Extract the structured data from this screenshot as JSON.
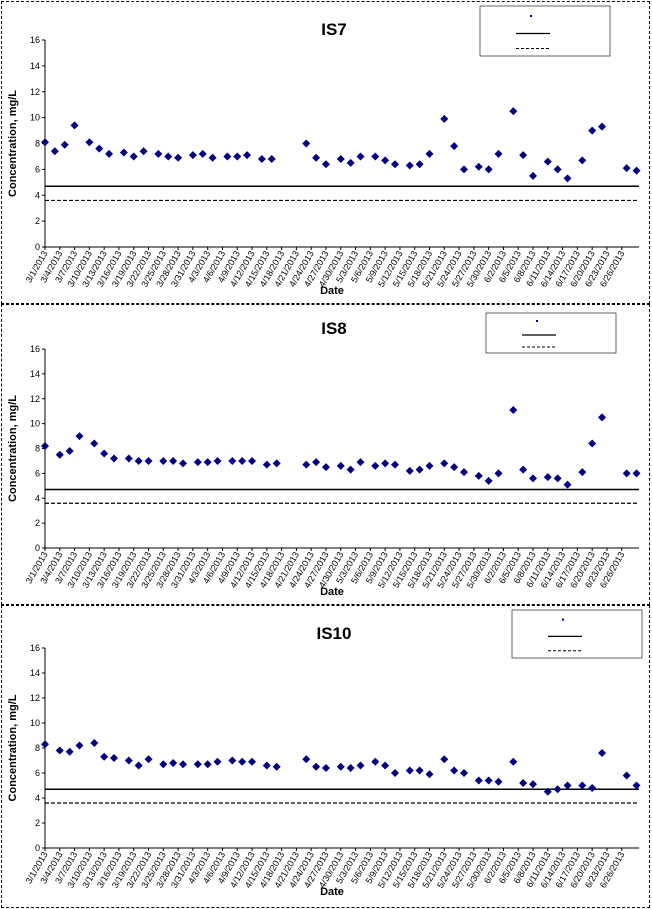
{
  "chart_data": [
    {
      "type": "scatter",
      "title": "IS7",
      "xlabel": "Date",
      "ylabel": "Concentration, mg/L",
      "ylim": [
        0,
        16
      ],
      "yticks": [
        "0",
        "2",
        "4",
        "6",
        "8",
        "10",
        "12",
        "14",
        "16"
      ],
      "x_tick_labels": [
        "3/1/2013",
        "3/4/2013",
        "3/7/2013",
        "3/10/2013",
        "3/13/2013",
        "3/16/2013",
        "3/19/2013",
        "3/22/2013",
        "3/25/2013",
        "3/28/2013",
        "3/31/2013",
        "4/3/2013",
        "4/6/2013",
        "4/9/2013",
        "4/12/2013",
        "4/15/2013",
        "4/18/2013",
        "4/21/2013",
        "4/24/2013",
        "4/27/2013",
        "4/30/2013",
        "5/3/2013",
        "5/6/2013",
        "5/9/2013",
        "5/12/2013",
        "5/15/2013",
        "5/18/2013",
        "5/21/2013",
        "5/24/2013",
        "5/27/2013",
        "5/30/2013",
        "6/2/2013",
        "6/5/2013",
        "6/8/2013",
        "6/11/2013",
        "6/14/2013",
        "6/17/2013",
        "6/20/2013",
        "6/23/2013",
        "6/26/2013"
      ],
      "series": [
        {
          "x": [
            "3/1/2013",
            "3/3/2013",
            "3/5/2013",
            "3/7/2013",
            "3/10/2013",
            "3/12/2013",
            "3/14/2013",
            "3/17/2013",
            "3/19/2013",
            "3/21/2013",
            "3/24/2013",
            "3/26/2013",
            "3/28/2013",
            "3/31/2013",
            "4/2/2013",
            "4/4/2013",
            "4/7/2013",
            "4/9/2013",
            "4/11/2013",
            "4/14/2013",
            "4/16/2013",
            "4/23/2013",
            "4/25/2013",
            "4/27/2013",
            "4/30/2013",
            "5/2/2013",
            "5/4/2013",
            "5/7/2013",
            "5/9/2013",
            "5/11/2013",
            "5/14/2013",
            "5/16/2013",
            "5/18/2013",
            "5/21/2013",
            "5/23/2013",
            "5/25/2013",
            "5/28/2013",
            "5/30/2013",
            "6/1/2013",
            "6/4/2013",
            "6/6/2013",
            "6/8/2013",
            "6/11/2013",
            "6/13/2013",
            "6/15/2013",
            "6/18/2013",
            "6/20/2013",
            "6/22/2013",
            "6/27/2013",
            "6/29/2013"
          ],
          "values": [
            8.1,
            7.4,
            7.9,
            9.4,
            8.1,
            7.6,
            7.2,
            7.3,
            7.0,
            7.4,
            7.2,
            7.0,
            6.9,
            7.1,
            7.2,
            6.9,
            7.0,
            7.0,
            7.1,
            6.8,
            6.8,
            8.0,
            6.9,
            6.4,
            6.8,
            6.5,
            7.0,
            7.0,
            6.7,
            6.4,
            6.3,
            6.4,
            7.2,
            9.9,
            7.8,
            6.0,
            6.2,
            6.0,
            7.2,
            10.5,
            7.1,
            5.5,
            6.6,
            6.0,
            5.3,
            6.7,
            9.0,
            9.3,
            6.1,
            5.9
          ]
        }
      ],
      "reference_lines": [
        {
          "value": 4.7,
          "style": "solid"
        },
        {
          "value": 3.6,
          "style": "dashed"
        }
      ],
      "legend_placement": "top-right"
    },
    {
      "type": "scatter",
      "title": "IS8",
      "xlabel": "Date",
      "ylabel": "Concentration, mg/L",
      "ylim": [
        0,
        16
      ],
      "yticks": [
        "0",
        "2",
        "4",
        "6",
        "8",
        "10",
        "12",
        "14",
        "16"
      ],
      "x_tick_labels": [
        "3/1/2013",
        "3/4/2013",
        "3/7/2013",
        "3/10/2013",
        "3/13/2013",
        "3/16/2013",
        "3/19/2013",
        "3/22/2013",
        "3/25/2013",
        "3/28/2013",
        "3/31/2013",
        "4/3/2013",
        "4/6/2013",
        "4/9/2013",
        "4/12/2013",
        "4/15/2013",
        "4/18/2013",
        "4/21/2013",
        "4/24/2013",
        "4/27/2013",
        "4/30/2013",
        "5/3/2013",
        "5/6/2013",
        "5/9/2013",
        "5/12/2013",
        "5/15/2013",
        "5/18/2013",
        "5/21/2013",
        "5/24/2013",
        "5/27/2013",
        "5/30/2013",
        "6/2/2013",
        "6/5/2013",
        "6/8/2013",
        "6/11/2013",
        "6/14/2013",
        "6/17/2013",
        "6/20/2013",
        "6/23/2013",
        "6/26/2013"
      ],
      "series": [
        {
          "x": [
            "3/1/2013",
            "3/4/2013",
            "3/6/2013",
            "3/8/2013",
            "3/11/2013",
            "3/13/2013",
            "3/15/2013",
            "3/18/2013",
            "3/20/2013",
            "3/22/2013",
            "3/25/2013",
            "3/27/2013",
            "3/29/2013",
            "4/1/2013",
            "4/3/2013",
            "4/5/2013",
            "4/8/2013",
            "4/10/2013",
            "4/12/2013",
            "4/15/2013",
            "4/17/2013",
            "4/23/2013",
            "4/25/2013",
            "4/27/2013",
            "4/30/2013",
            "5/2/2013",
            "5/4/2013",
            "5/7/2013",
            "5/9/2013",
            "5/11/2013",
            "5/14/2013",
            "5/16/2013",
            "5/18/2013",
            "5/21/2013",
            "5/23/2013",
            "5/25/2013",
            "5/28/2013",
            "5/30/2013",
            "6/1/2013",
            "6/4/2013",
            "6/6/2013",
            "6/8/2013",
            "6/11/2013",
            "6/13/2013",
            "6/15/2013",
            "6/18/2013",
            "6/20/2013",
            "6/22/2013",
            "6/27/2013",
            "6/29/2013"
          ],
          "values": [
            8.2,
            7.5,
            7.8,
            9.0,
            8.4,
            7.6,
            7.2,
            7.2,
            7.0,
            7.0,
            7.0,
            7.0,
            6.8,
            6.9,
            6.9,
            7.0,
            7.0,
            7.0,
            7.0,
            6.7,
            6.8,
            6.7,
            6.9,
            6.5,
            6.6,
            6.3,
            6.9,
            6.6,
            6.8,
            6.7,
            6.2,
            6.3,
            6.6,
            6.8,
            6.5,
            6.1,
            5.8,
            5.4,
            6.0,
            11.1,
            6.3,
            5.6,
            5.7,
            5.6,
            5.1,
            6.1,
            8.4,
            10.5,
            6.0,
            6.0
          ]
        }
      ],
      "reference_lines": [
        {
          "value": 4.7,
          "style": "solid"
        },
        {
          "value": 3.6,
          "style": "dashed"
        }
      ],
      "legend_placement": "top-right"
    },
    {
      "type": "scatter",
      "title": "IS10",
      "xlabel": "Date",
      "ylabel": "Concentration, mg/L",
      "ylim": [
        0,
        16
      ],
      "yticks": [
        "0",
        "2",
        "4",
        "6",
        "8",
        "10",
        "12",
        "14",
        "16"
      ],
      "x_tick_labels": [
        "3/1/2013",
        "3/4/2013",
        "3/7/2013",
        "3/10/2013",
        "3/13/2013",
        "3/16/2013",
        "3/19/2013",
        "3/22/2013",
        "3/25/2013",
        "3/28/2013",
        "3/31/2013",
        "4/3/2013",
        "4/6/2013",
        "4/9/2013",
        "4/12/2013",
        "4/15/2013",
        "4/18/2013",
        "4/21/2013",
        "4/24/2013",
        "4/27/2013",
        "4/30/2013",
        "5/3/2013",
        "5/6/2013",
        "5/9/2013",
        "5/12/2013",
        "5/15/2013",
        "5/18/2013",
        "5/21/2013",
        "5/24/2013",
        "5/27/2013",
        "5/30/2013",
        "6/2/2013",
        "6/5/2013",
        "6/8/2013",
        "6/11/2013",
        "6/14/2013",
        "6/17/2013",
        "6/20/2013",
        "6/23/2013",
        "6/26/2013"
      ],
      "series": [
        {
          "x": [
            "3/1/2013",
            "3/4/2013",
            "3/6/2013",
            "3/8/2013",
            "3/11/2013",
            "3/13/2013",
            "3/15/2013",
            "3/18/2013",
            "3/20/2013",
            "3/22/2013",
            "3/25/2013",
            "3/27/2013",
            "3/29/2013",
            "4/1/2013",
            "4/3/2013",
            "4/5/2013",
            "4/8/2013",
            "4/10/2013",
            "4/12/2013",
            "4/15/2013",
            "4/17/2013",
            "4/23/2013",
            "4/25/2013",
            "4/27/2013",
            "4/30/2013",
            "5/2/2013",
            "5/4/2013",
            "5/7/2013",
            "5/9/2013",
            "5/11/2013",
            "5/14/2013",
            "5/16/2013",
            "5/18/2013",
            "5/21/2013",
            "5/23/2013",
            "5/25/2013",
            "5/28/2013",
            "5/30/2013",
            "6/1/2013",
            "6/4/2013",
            "6/6/2013",
            "6/8/2013",
            "6/11/2013",
            "6/13/2013",
            "6/15/2013",
            "6/18/2013",
            "6/20/2013",
            "6/22/2013",
            "6/27/2013",
            "6/29/2013"
          ],
          "values": [
            8.3,
            7.8,
            7.7,
            8.2,
            8.4,
            7.3,
            7.2,
            7.0,
            6.6,
            7.1,
            6.7,
            6.8,
            6.7,
            6.7,
            6.7,
            6.9,
            7.0,
            6.9,
            6.9,
            6.6,
            6.5,
            7.1,
            6.5,
            6.4,
            6.5,
            6.4,
            6.6,
            6.9,
            6.6,
            6.0,
            6.2,
            6.2,
            5.9,
            7.1,
            6.2,
            6.0,
            5.4,
            5.4,
            5.3,
            6.9,
            5.2,
            5.1,
            4.5,
            4.7,
            5.0,
            5.0,
            4.8,
            7.6,
            5.8,
            5.0
          ]
        }
      ],
      "reference_lines": [
        {
          "value": 4.7,
          "style": "solid"
        },
        {
          "value": 3.6,
          "style": "dashed"
        }
      ],
      "legend_placement": "top-right"
    }
  ],
  "colors": {
    "marker": "#000080",
    "axis": "#000000",
    "ref_line": "#000000"
  },
  "panels": [
    {
      "title": "IS7",
      "ylabel": "Concentration, mg/L",
      "xlabel": "Date"
    },
    {
      "title": "IS8",
      "ylabel": "Concentration, mg/L",
      "xlabel": "Date"
    },
    {
      "title": "IS10",
      "ylabel": "Concentration, mg/L",
      "xlabel": "Date"
    }
  ]
}
